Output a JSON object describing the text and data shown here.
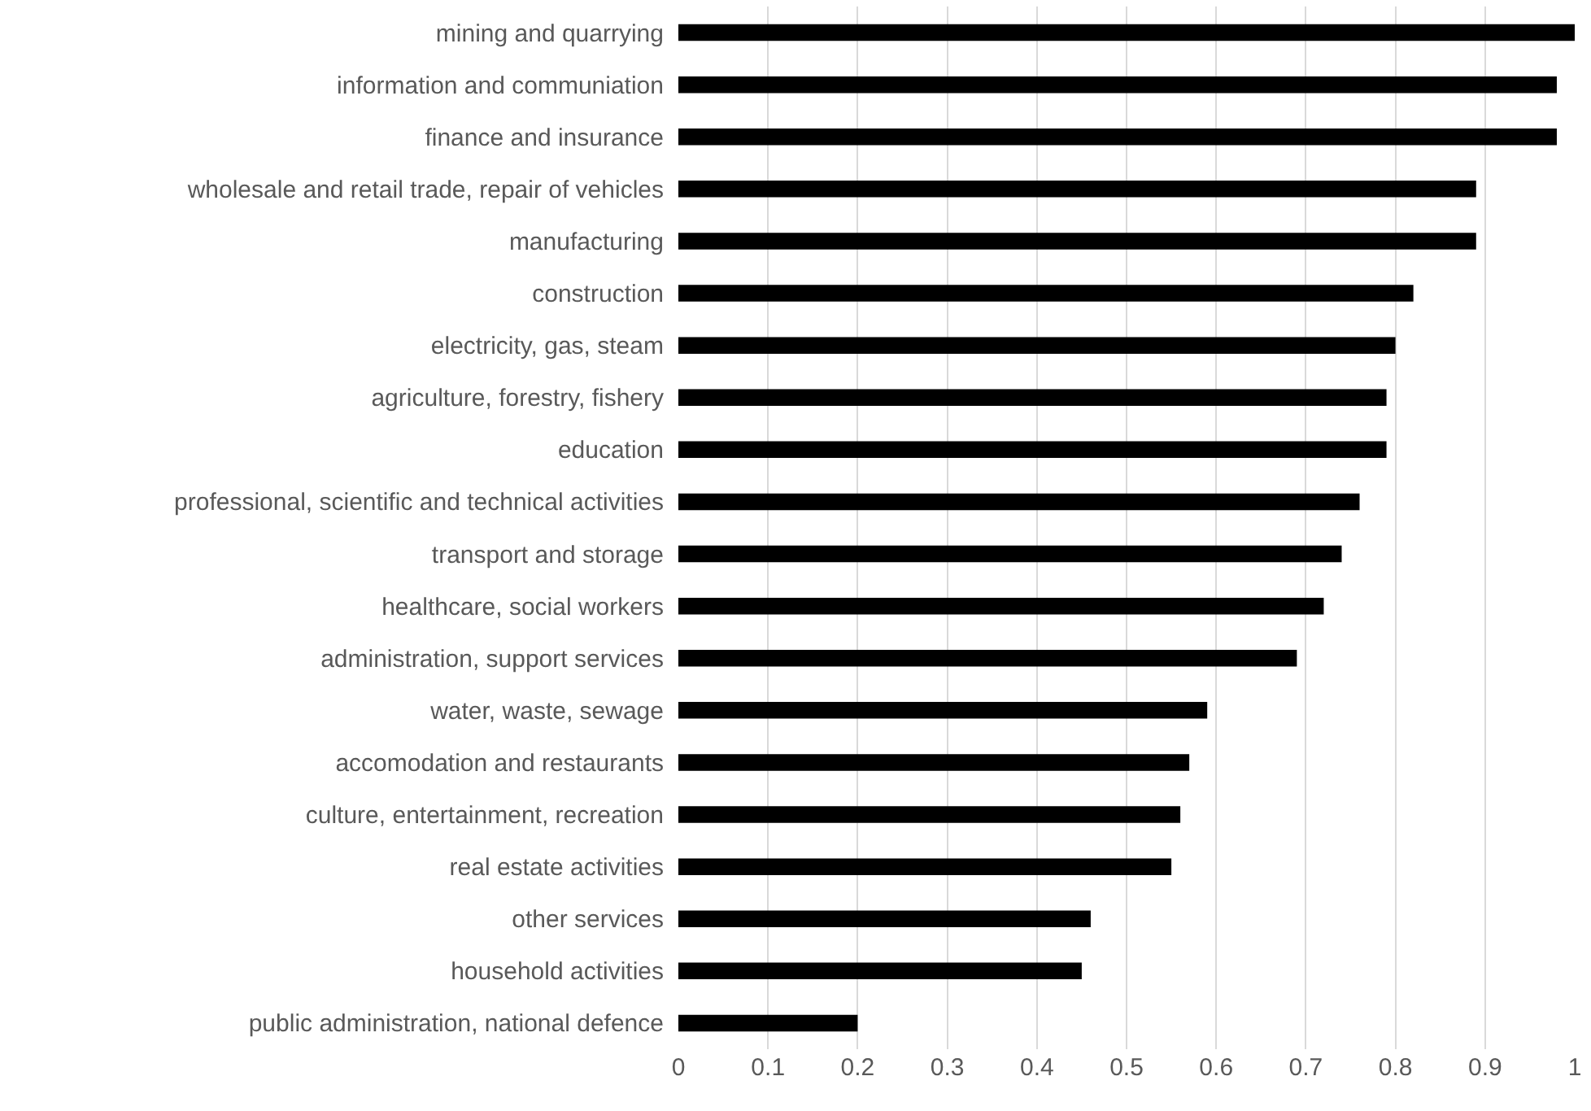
{
  "chart_data": {
    "type": "bar",
    "orientation": "horizontal",
    "categories": [
      "mining and quarrying",
      "information and communiation",
      "finance and insurance",
      "wholesale and retail trade, repair of vehicles",
      "manufacturing",
      "construction",
      "electricity, gas, steam",
      "agriculture, forestry, fishery",
      "education",
      "professional, scientific and technical activities",
      "transport and storage",
      "healthcare, social workers",
      "administration, support services",
      "water, waste, sewage",
      "accomodation and restaurants",
      "culture, entertainment, recreation",
      "real estate activities",
      "other services",
      "household activities",
      "public administration, national defence"
    ],
    "values": [
      1,
      0.98,
      0.98,
      0.89,
      0.89,
      0.82,
      0.8,
      0.79,
      0.79,
      0.76,
      0.74,
      0.72,
      0.69,
      0.59,
      0.57,
      0.56,
      0.55,
      0.46,
      0.45,
      0.2
    ],
    "color": "#000000",
    "xlim": [
      0,
      1
    ],
    "xticks": [
      0,
      0.1,
      0.2,
      0.3,
      0.4,
      0.5,
      0.6,
      0.7,
      0.8,
      0.9,
      1
    ],
    "grid": "x",
    "legend": false
  }
}
